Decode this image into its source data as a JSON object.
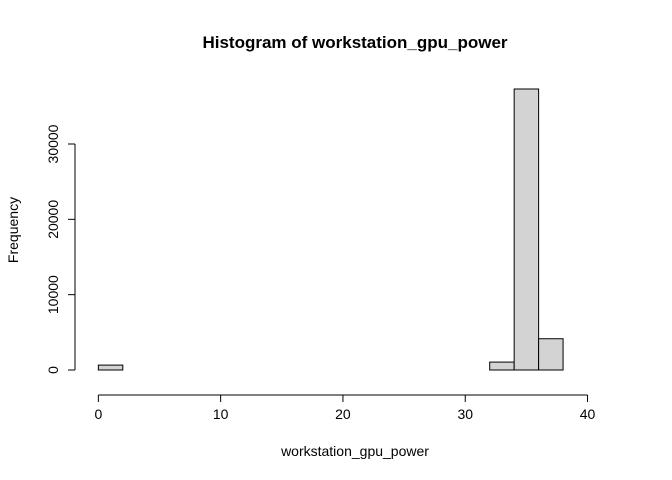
{
  "chart_data": {
    "type": "bar",
    "subtype": "histogram",
    "title": "Histogram of workstation_gpu_power",
    "xlabel": "workstation_gpu_power",
    "ylabel": "Frequency",
    "bins": [
      {
        "x0": 0,
        "x1": 2,
        "count": 650
      },
      {
        "x0": 2,
        "x1": 4,
        "count": 0
      },
      {
        "x0": 4,
        "x1": 6,
        "count": 0
      },
      {
        "x0": 6,
        "x1": 8,
        "count": 0
      },
      {
        "x0": 8,
        "x1": 10,
        "count": 0
      },
      {
        "x0": 10,
        "x1": 12,
        "count": 0
      },
      {
        "x0": 12,
        "x1": 14,
        "count": 0
      },
      {
        "x0": 14,
        "x1": 16,
        "count": 0
      },
      {
        "x0": 16,
        "x1": 18,
        "count": 0
      },
      {
        "x0": 18,
        "x1": 20,
        "count": 0
      },
      {
        "x0": 20,
        "x1": 22,
        "count": 0
      },
      {
        "x0": 22,
        "x1": 24,
        "count": 0
      },
      {
        "x0": 24,
        "x1": 26,
        "count": 0
      },
      {
        "x0": 26,
        "x1": 28,
        "count": 0
      },
      {
        "x0": 28,
        "x1": 30,
        "count": 0
      },
      {
        "x0": 30,
        "x1": 32,
        "count": 0
      },
      {
        "x0": 32,
        "x1": 34,
        "count": 1050
      },
      {
        "x0": 34,
        "x1": 36,
        "count": 37300
      },
      {
        "x0": 36,
        "x1": 38,
        "count": 4150
      }
    ],
    "xlim": [
      -1.5,
      42
    ],
    "ylim": [
      0,
      37300
    ],
    "x_ticks": [
      0,
      10,
      20,
      30,
      40
    ],
    "y_ticks": [
      0,
      10000,
      20000,
      30000
    ],
    "bar_fill": "#d3d3d3",
    "bar_stroke": "#000000",
    "grid": false
  }
}
